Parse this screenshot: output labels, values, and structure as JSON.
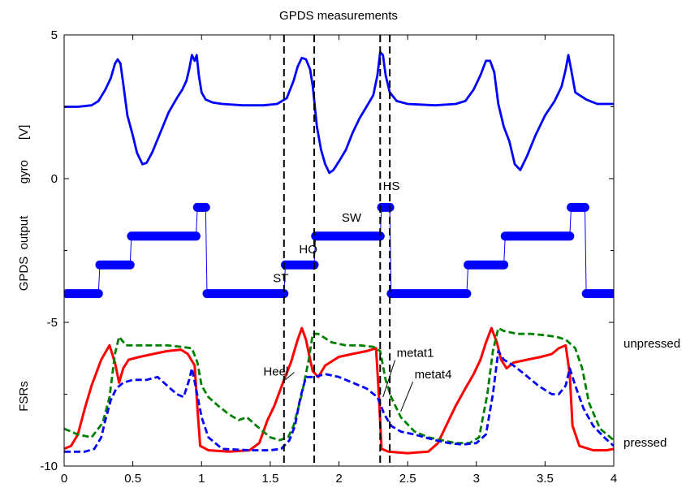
{
  "chart_data": {
    "type": "line",
    "title": "GPDS measurements",
    "xlim": [
      0,
      4
    ],
    "ylim": [
      -10,
      5
    ],
    "xticks": [
      "0",
      "0.5",
      "1",
      "1.5",
      "2",
      "2.5",
      "3",
      "3.5",
      "4"
    ],
    "yticks": [
      "5",
      "0",
      "-5",
      "-10"
    ],
    "ylabels": {
      "gyro": "gyro      [V]",
      "gpds": "GPDS  output",
      "fsrs": "FSRs"
    },
    "right_labels": {
      "unpressed": "unpressed",
      "pressed": "pressed"
    },
    "phase_lines_x": [
      1.6,
      1.82,
      2.3,
      2.37
    ],
    "phase_labels": [
      {
        "text": "ST",
        "x": 1.52,
        "y": -3.6
      },
      {
        "text": "HO",
        "x": 1.71,
        "y": -2.6
      },
      {
        "text": "SW",
        "x": 2.02,
        "y": -1.5
      },
      {
        "text": "HS",
        "x": 2.32,
        "y": -0.4
      }
    ],
    "annotations": [
      {
        "text": "Heel",
        "x": 1.45,
        "y": -6.85,
        "arrow_to": [
          1.61,
          -7.0
        ]
      },
      {
        "text": "metat1",
        "x": 2.42,
        "y": -6.2,
        "arrow_to": [
          2.32,
          -7.6
        ]
      },
      {
        "text": "metat4",
        "x": 2.55,
        "y": -6.95,
        "arrow_to": [
          2.45,
          -8.1
        ]
      }
    ],
    "series": [
      {
        "name": "gyro",
        "color": "#0000ff",
        "style": "solid",
        "points": [
          [
            0,
            2.5
          ],
          [
            0.1,
            2.5
          ],
          [
            0.2,
            2.55
          ],
          [
            0.25,
            2.7
          ],
          [
            0.3,
            3.1
          ],
          [
            0.34,
            3.5
          ],
          [
            0.37,
            4.0
          ],
          [
            0.39,
            4.15
          ],
          [
            0.41,
            4.0
          ],
          [
            0.43,
            3.3
          ],
          [
            0.46,
            2.2
          ],
          [
            0.5,
            1.5
          ],
          [
            0.53,
            0.9
          ],
          [
            0.57,
            0.5
          ],
          [
            0.6,
            0.55
          ],
          [
            0.64,
            0.9
          ],
          [
            0.7,
            1.6
          ],
          [
            0.76,
            2.3
          ],
          [
            0.82,
            2.8
          ],
          [
            0.86,
            3.1
          ],
          [
            0.89,
            3.4
          ],
          [
            0.91,
            3.8
          ],
          [
            0.93,
            4.3
          ],
          [
            0.95,
            4.1
          ],
          [
            0.965,
            4.3
          ],
          [
            0.98,
            3.6
          ],
          [
            1.0,
            3.0
          ],
          [
            1.03,
            2.75
          ],
          [
            1.08,
            2.65
          ],
          [
            1.15,
            2.6
          ],
          [
            1.3,
            2.55
          ],
          [
            1.45,
            2.55
          ],
          [
            1.55,
            2.6
          ],
          [
            1.62,
            2.8
          ],
          [
            1.67,
            3.4
          ],
          [
            1.7,
            3.9
          ],
          [
            1.73,
            4.2
          ],
          [
            1.76,
            4.15
          ],
          [
            1.79,
            3.8
          ],
          [
            1.81,
            3.2
          ],
          [
            1.84,
            1.8
          ],
          [
            1.87,
            1.0
          ],
          [
            1.9,
            0.5
          ],
          [
            1.93,
            0.2
          ],
          [
            1.96,
            0.3
          ],
          [
            2.0,
            0.6
          ],
          [
            2.05,
            1.0
          ],
          [
            2.1,
            1.6
          ],
          [
            2.15,
            2.1
          ],
          [
            2.2,
            2.5
          ],
          [
            2.25,
            2.9
          ],
          [
            2.28,
            3.6
          ],
          [
            2.3,
            4.4
          ],
          [
            2.32,
            4.3
          ],
          [
            2.34,
            3.6
          ],
          [
            2.37,
            3.0
          ],
          [
            2.42,
            2.7
          ],
          [
            2.5,
            2.6
          ],
          [
            2.7,
            2.55
          ],
          [
            2.85,
            2.6
          ],
          [
            2.92,
            2.7
          ],
          [
            2.98,
            3.1
          ],
          [
            3.03,
            3.6
          ],
          [
            3.07,
            4.1
          ],
          [
            3.1,
            4.1
          ],
          [
            3.13,
            3.7
          ],
          [
            3.16,
            2.6
          ],
          [
            3.2,
            1.8
          ],
          [
            3.24,
            1.3
          ],
          [
            3.28,
            0.5
          ],
          [
            3.32,
            0.3
          ],
          [
            3.37,
            0.8
          ],
          [
            3.43,
            1.5
          ],
          [
            3.5,
            2.2
          ],
          [
            3.57,
            2.7
          ],
          [
            3.62,
            3.2
          ],
          [
            3.65,
            3.8
          ],
          [
            3.67,
            4.3
          ],
          [
            3.69,
            3.8
          ],
          [
            3.72,
            3.0
          ],
          [
            3.8,
            2.75
          ],
          [
            3.88,
            2.6
          ],
          [
            3.95,
            2.6
          ],
          [
            4.0,
            2.6
          ]
        ]
      },
      {
        "name": "GPDS output",
        "color": "#0000ff",
        "style": "markers",
        "points": [
          [
            0.02,
            -4
          ],
          [
            0.25,
            -4
          ],
          [
            0.26,
            -3
          ],
          [
            0.48,
            -3
          ],
          [
            0.49,
            -2
          ],
          [
            0.96,
            -2
          ],
          [
            0.97,
            -1
          ],
          [
            1.03,
            -1
          ],
          [
            1.04,
            -4
          ],
          [
            1.6,
            -4
          ],
          [
            1.61,
            -3
          ],
          [
            1.82,
            -3
          ],
          [
            1.83,
            -2
          ],
          [
            2.3,
            -2
          ],
          [
            2.31,
            -1
          ],
          [
            2.37,
            -1
          ],
          [
            2.38,
            -4
          ],
          [
            2.93,
            -4
          ],
          [
            2.94,
            -3
          ],
          [
            3.2,
            -3
          ],
          [
            3.21,
            -2
          ],
          [
            3.68,
            -2
          ],
          [
            3.69,
            -1
          ],
          [
            3.79,
            -1
          ],
          [
            3.8,
            -4
          ],
          [
            4.0,
            -4
          ]
        ]
      },
      {
        "name": "Heel",
        "color": "#ff0000",
        "style": "solid",
        "points": [
          [
            0,
            -9.4
          ],
          [
            0.05,
            -9.3
          ],
          [
            0.1,
            -8.9
          ],
          [
            0.15,
            -8.0
          ],
          [
            0.2,
            -7.2
          ],
          [
            0.27,
            -6.3
          ],
          [
            0.33,
            -5.8
          ],
          [
            0.37,
            -6.4
          ],
          [
            0.4,
            -7.1
          ],
          [
            0.43,
            -6.6
          ],
          [
            0.47,
            -6.3
          ],
          [
            0.55,
            -6.2
          ],
          [
            0.65,
            -6.1
          ],
          [
            0.75,
            -6.0
          ],
          [
            0.85,
            -5.95
          ],
          [
            0.9,
            -6.1
          ],
          [
            0.95,
            -6.5
          ],
          [
            0.97,
            -8.0
          ],
          [
            0.99,
            -9.3
          ],
          [
            1.05,
            -9.45
          ],
          [
            1.2,
            -9.5
          ],
          [
            1.35,
            -9.45
          ],
          [
            1.42,
            -9.2
          ],
          [
            1.48,
            -8.4
          ],
          [
            1.53,
            -7.9
          ],
          [
            1.6,
            -7.0
          ],
          [
            1.65,
            -6.4
          ],
          [
            1.7,
            -5.6
          ],
          [
            1.73,
            -5.2
          ],
          [
            1.76,
            -5.6
          ],
          [
            1.79,
            -6.3
          ],
          [
            1.81,
            -6.7
          ],
          [
            1.85,
            -6.9
          ],
          [
            1.9,
            -6.5
          ],
          [
            2.0,
            -6.2
          ],
          [
            2.1,
            -6.1
          ],
          [
            2.2,
            -6.0
          ],
          [
            2.27,
            -5.9
          ],
          [
            2.29,
            -7.5
          ],
          [
            2.31,
            -9.4
          ],
          [
            2.36,
            -9.5
          ],
          [
            2.5,
            -9.55
          ],
          [
            2.65,
            -9.5
          ],
          [
            2.72,
            -9.2
          ],
          [
            2.78,
            -8.6
          ],
          [
            2.85,
            -7.9
          ],
          [
            2.92,
            -7.3
          ],
          [
            2.98,
            -6.8
          ],
          [
            3.03,
            -6.3
          ],
          [
            3.07,
            -5.7
          ],
          [
            3.11,
            -5.2
          ],
          [
            3.15,
            -5.7
          ],
          [
            3.18,
            -6.3
          ],
          [
            3.22,
            -6.6
          ],
          [
            3.27,
            -6.4
          ],
          [
            3.37,
            -6.3
          ],
          [
            3.47,
            -6.2
          ],
          [
            3.55,
            -6.1
          ],
          [
            3.6,
            -5.9
          ],
          [
            3.65,
            -5.8
          ],
          [
            3.68,
            -6.8
          ],
          [
            3.7,
            -8.6
          ],
          [
            3.75,
            -9.3
          ],
          [
            3.85,
            -9.45
          ],
          [
            3.95,
            -9.45
          ],
          [
            4.0,
            -9.4
          ]
        ]
      },
      {
        "name": "metat1",
        "color": "#008000",
        "style": "dashed",
        "points": [
          [
            0,
            -8.7
          ],
          [
            0.1,
            -8.9
          ],
          [
            0.2,
            -9.0
          ],
          [
            0.28,
            -8.5
          ],
          [
            0.33,
            -7.6
          ],
          [
            0.37,
            -6.1
          ],
          [
            0.4,
            -5.5
          ],
          [
            0.45,
            -5.8
          ],
          [
            0.55,
            -5.8
          ],
          [
            0.65,
            -5.8
          ],
          [
            0.75,
            -5.8
          ],
          [
            0.85,
            -5.85
          ],
          [
            0.93,
            -5.9
          ],
          [
            0.97,
            -6.4
          ],
          [
            1.0,
            -7.2
          ],
          [
            1.05,
            -7.6
          ],
          [
            1.12,
            -7.9
          ],
          [
            1.2,
            -8.2
          ],
          [
            1.27,
            -8.4
          ],
          [
            1.33,
            -8.3
          ],
          [
            1.4,
            -8.6
          ],
          [
            1.5,
            -9.0
          ],
          [
            1.57,
            -9.1
          ],
          [
            1.63,
            -9.0
          ],
          [
            1.67,
            -8.6
          ],
          [
            1.73,
            -7.5
          ],
          [
            1.78,
            -6.3
          ],
          [
            1.81,
            -5.4
          ],
          [
            1.85,
            -5.4
          ],
          [
            1.95,
            -5.7
          ],
          [
            2.05,
            -5.8
          ],
          [
            2.15,
            -5.8
          ],
          [
            2.25,
            -5.85
          ],
          [
            2.3,
            -6.0
          ],
          [
            2.34,
            -7.0
          ],
          [
            2.38,
            -7.6
          ],
          [
            2.45,
            -8.3
          ],
          [
            2.55,
            -8.8
          ],
          [
            2.65,
            -9.0
          ],
          [
            2.75,
            -9.1
          ],
          [
            2.85,
            -9.2
          ],
          [
            2.95,
            -9.2
          ],
          [
            3.02,
            -9.0
          ],
          [
            3.08,
            -7.5
          ],
          [
            3.12,
            -6.0
          ],
          [
            3.16,
            -5.2
          ],
          [
            3.2,
            -5.3
          ],
          [
            3.3,
            -5.4
          ],
          [
            3.4,
            -5.4
          ],
          [
            3.5,
            -5.45
          ],
          [
            3.58,
            -5.5
          ],
          [
            3.65,
            -5.6
          ],
          [
            3.72,
            -5.9
          ],
          [
            3.77,
            -6.6
          ],
          [
            3.82,
            -7.8
          ],
          [
            3.9,
            -8.7
          ],
          [
            4.0,
            -9.1
          ]
        ]
      },
      {
        "name": "metat4",
        "color": "#0000ff",
        "style": "dashed",
        "points": [
          [
            0,
            -9.5
          ],
          [
            0.15,
            -9.5
          ],
          [
            0.22,
            -9.4
          ],
          [
            0.27,
            -9.0
          ],
          [
            0.3,
            -8.4
          ],
          [
            0.34,
            -7.7
          ],
          [
            0.38,
            -7.3
          ],
          [
            0.43,
            -7.1
          ],
          [
            0.5,
            -7.0
          ],
          [
            0.6,
            -7.0
          ],
          [
            0.68,
            -6.9
          ],
          [
            0.75,
            -7.2
          ],
          [
            0.82,
            -7.5
          ],
          [
            0.87,
            -7.6
          ],
          [
            0.91,
            -7.0
          ],
          [
            0.93,
            -6.6
          ],
          [
            0.96,
            -7.3
          ],
          [
            1.0,
            -8.3
          ],
          [
            1.05,
            -9.0
          ],
          [
            1.15,
            -9.4
          ],
          [
            1.35,
            -9.45
          ],
          [
            1.5,
            -9.45
          ],
          [
            1.58,
            -9.4
          ],
          [
            1.64,
            -9.1
          ],
          [
            1.68,
            -8.6
          ],
          [
            1.72,
            -7.6
          ],
          [
            1.76,
            -6.9
          ],
          [
            1.82,
            -6.9
          ],
          [
            1.9,
            -6.8
          ],
          [
            2.0,
            -6.9
          ],
          [
            2.1,
            -7.1
          ],
          [
            2.2,
            -7.3
          ],
          [
            2.28,
            -7.6
          ],
          [
            2.33,
            -8.2
          ],
          [
            2.38,
            -8.6
          ],
          [
            2.45,
            -8.8
          ],
          [
            2.55,
            -8.9
          ],
          [
            2.7,
            -9.1
          ],
          [
            2.8,
            -9.2
          ],
          [
            2.9,
            -9.25
          ],
          [
            3.0,
            -9.2
          ],
          [
            3.07,
            -8.9
          ],
          [
            3.12,
            -7.5
          ],
          [
            3.16,
            -6.0
          ],
          [
            3.2,
            -6.3
          ],
          [
            3.27,
            -6.5
          ],
          [
            3.35,
            -6.8
          ],
          [
            3.45,
            -7.2
          ],
          [
            3.55,
            -7.5
          ],
          [
            3.6,
            -7.5
          ],
          [
            3.65,
            -7.2
          ],
          [
            3.68,
            -6.6
          ],
          [
            3.72,
            -7.2
          ],
          [
            3.78,
            -8.0
          ],
          [
            3.85,
            -8.6
          ],
          [
            3.93,
            -9.0
          ],
          [
            4.0,
            -9.3
          ]
        ]
      }
    ]
  }
}
